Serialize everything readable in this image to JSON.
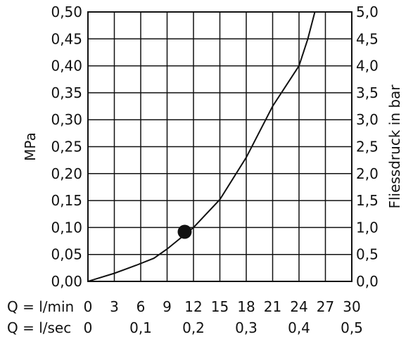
{
  "chart_data": {
    "type": "line",
    "title": "",
    "x_primary": {
      "label": "Q = l/min",
      "range": [
        0,
        30
      ],
      "ticks": [
        "0",
        "3",
        "6",
        "9",
        "12",
        "15",
        "18",
        "21",
        "24",
        "27",
        "30"
      ]
    },
    "x_secondary": {
      "label": "Q = l/sec",
      "range": [
        0,
        0.5
      ],
      "ticks": [
        "0",
        "0,1",
        "0,2",
        "0,3",
        "0,4",
        "0,5"
      ]
    },
    "y_left": {
      "label": "MPa",
      "range": [
        0,
        0.5
      ],
      "ticks": [
        "0,00",
        "0,05",
        "0,10",
        "0,15",
        "0,20",
        "0,25",
        "0,30",
        "0,35",
        "0,40",
        "0,45",
        "0,50"
      ]
    },
    "y_right": {
      "label": "Fliessdruck in bar",
      "range": [
        0,
        5
      ],
      "ticks": [
        "0,0",
        "0,5",
        "1,0",
        "1,5",
        "2,0",
        "2,5",
        "3,0",
        "3,5",
        "4,0",
        "4,5",
        "5,0"
      ]
    },
    "grid": true,
    "series": [
      {
        "x": [
          0,
          3,
          5.5,
          7.5,
          9,
          10.5,
          12,
          15,
          18,
          21,
          24,
          25,
          25.8
        ],
        "y": [
          0,
          0.015,
          0.03,
          0.043,
          0.06,
          0.08,
          0.1,
          0.152,
          0.23,
          0.325,
          0.4,
          0.45,
          0.5
        ]
      }
    ],
    "marker": {
      "x": 11,
      "y": 0.092
    },
    "colors": {
      "line": "#111111",
      "grid": "#111111"
    }
  }
}
